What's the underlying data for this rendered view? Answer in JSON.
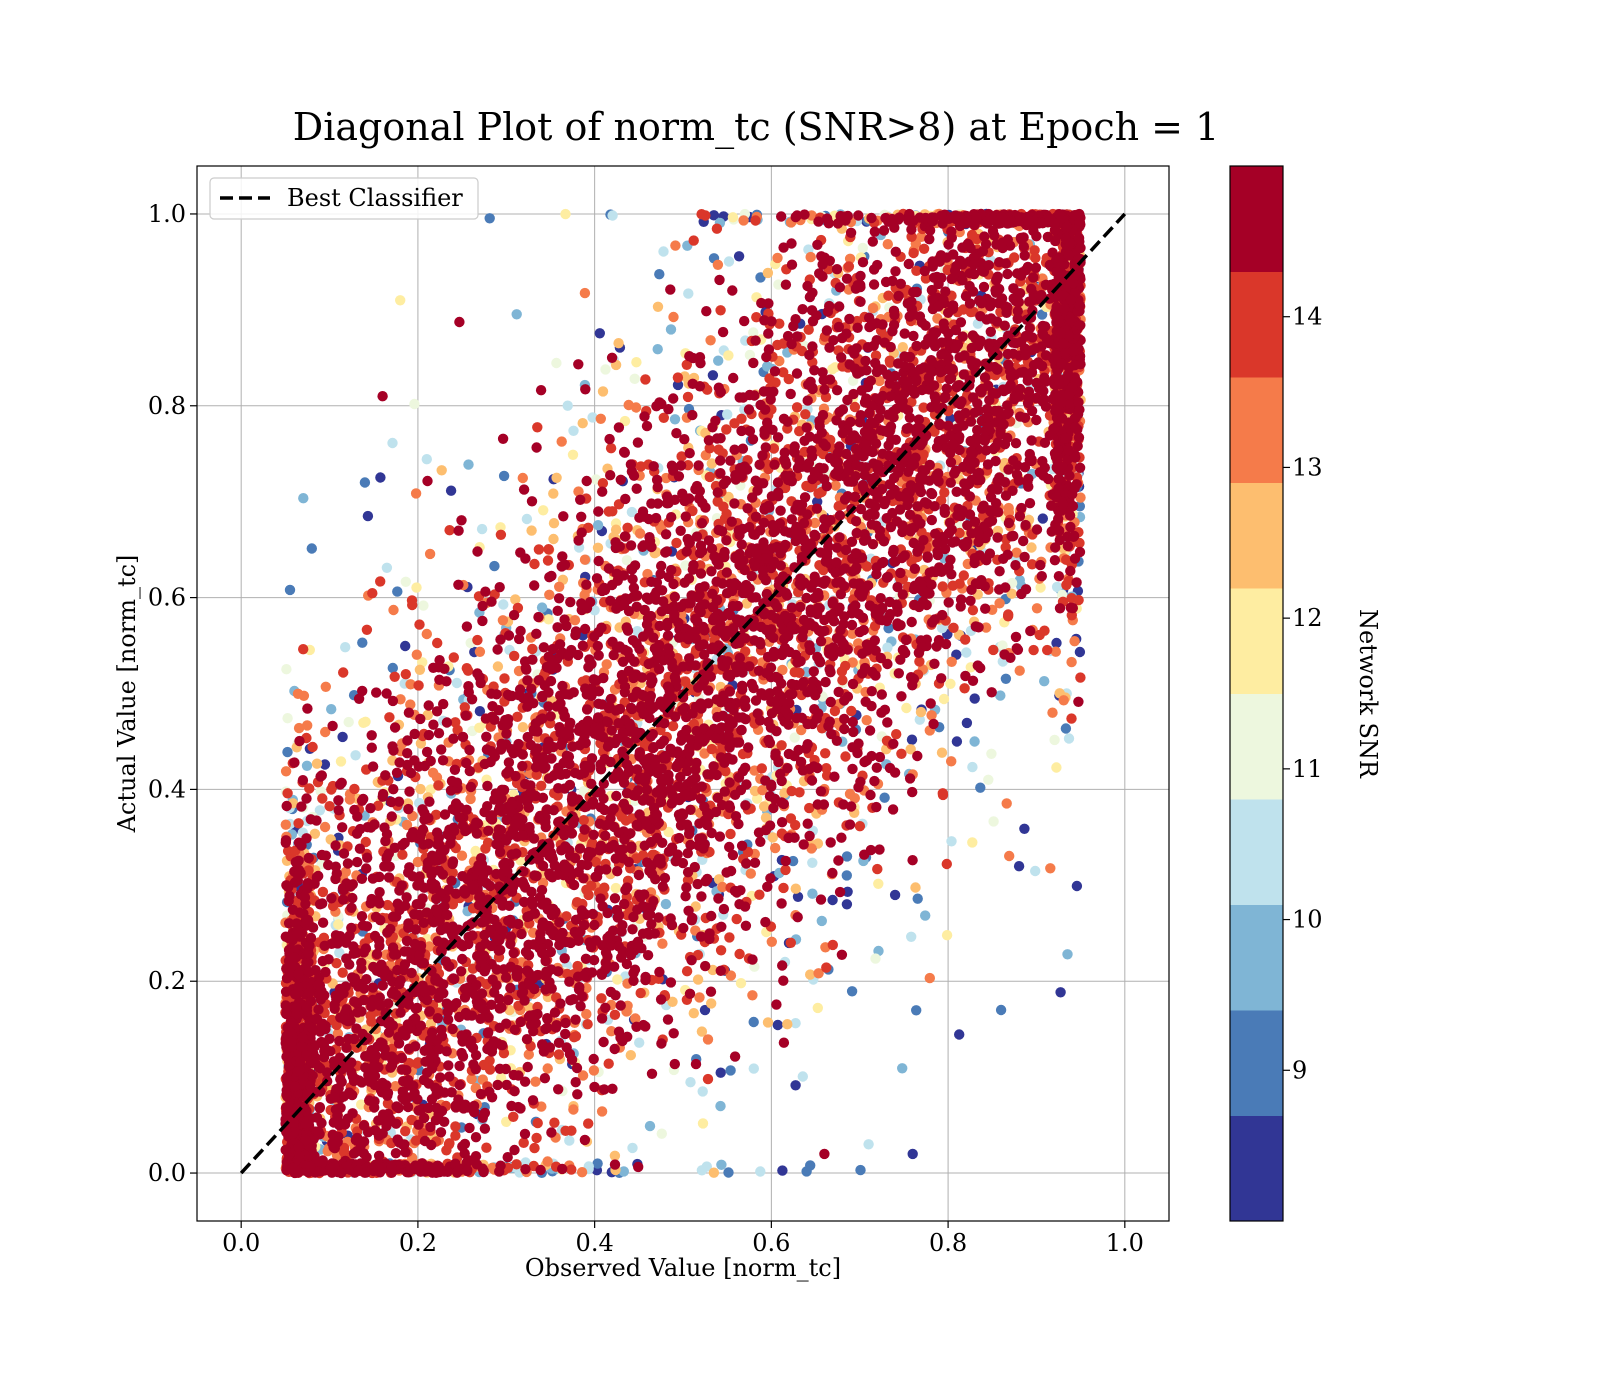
{
  "chart_data": {
    "type": "scatter",
    "title": "Diagonal Plot of norm_tc (SNR>8) at Epoch = 1",
    "xlabel": "Observed Value [norm_tc]",
    "ylabel": "Actual Value [norm_tc]",
    "xlim": [
      -0.05,
      1.05
    ],
    "ylim": [
      -0.05,
      1.05
    ],
    "xticks": [
      0.0,
      0.2,
      0.4,
      0.6,
      0.8,
      1.0
    ],
    "yticks": [
      0.0,
      0.2,
      0.4,
      0.6,
      0.8,
      1.0
    ],
    "xtick_labels": [
      "0.0",
      "0.2",
      "0.4",
      "0.6",
      "0.8",
      "1.0"
    ],
    "ytick_labels": [
      "0.0",
      "0.2",
      "0.4",
      "0.6",
      "0.8",
      "1.0"
    ],
    "grid": true,
    "legend": {
      "position": "upper-left",
      "entries": [
        {
          "label": "Best Classifier",
          "style": "dashed",
          "color": "#000000"
        }
      ]
    },
    "reference_line": {
      "name": "Best Classifier",
      "x": [
        0.0,
        1.0
      ],
      "y": [
        0.0,
        1.0
      ]
    },
    "colorbar": {
      "label": "Network SNR",
      "colormap": "RdYlBu_r (discrete)",
      "range": [
        8.0,
        15.0
      ],
      "ticks": [
        9,
        10,
        11,
        12,
        13,
        14
      ],
      "tick_labels": [
        "9",
        "10",
        "11",
        "12",
        "13",
        "14"
      ],
      "bins": [
        {
          "from": 8.0,
          "to": 8.7,
          "color": "#313695"
        },
        {
          "from": 8.7,
          "to": 9.4,
          "color": "#4a7bb7"
        },
        {
          "from": 9.4,
          "to": 10.1,
          "color": "#7fb5d5"
        },
        {
          "from": 10.1,
          "to": 10.8,
          "color": "#bfe2ed"
        },
        {
          "from": 10.8,
          "to": 11.5,
          "color": "#edf7de"
        },
        {
          "from": 11.5,
          "to": 12.2,
          "color": "#feeda1"
        },
        {
          "from": 12.2,
          "to": 12.9,
          "color": "#fdbe6f"
        },
        {
          "from": 12.9,
          "to": 13.6,
          "color": "#f57b4a"
        },
        {
          "from": 13.6,
          "to": 14.3,
          "color": "#da372a"
        },
        {
          "from": 14.3,
          "to": 15.0,
          "color": "#a50026"
        }
      ]
    },
    "distribution": {
      "description_values": "points concentrated along y = x with bulk spread about 0.13; low SNR points scatter widely",
      "x_range": [
        0.05,
        0.95
      ],
      "y_range": [
        0.0,
        1.0
      ],
      "high_snr_spread": 0.13,
      "low_snr_spread": 0.3
    },
    "sample_points": [
      {
        "x": 0.16,
        "y": 0.81,
        "snr": 14.8
      },
      {
        "x": 0.14,
        "y": 0.72,
        "snr": 9.2
      },
      {
        "x": 0.86,
        "y": 0.17,
        "snr": 9.1
      },
      {
        "x": 0.76,
        "y": 0.02,
        "snr": 8.2
      },
      {
        "x": 0.42,
        "y": 0.69,
        "snr": 13.9
      },
      {
        "x": 0.62,
        "y": 0.24,
        "snr": 8.5
      },
      {
        "x": 0.18,
        "y": 0.91,
        "snr": 11.8
      },
      {
        "x": 0.66,
        "y": 0.02,
        "snr": 14.5
      },
      {
        "x": 0.71,
        "y": 0.03,
        "snr": 10.5
      },
      {
        "x": 0.74,
        "y": 0.29,
        "snr": 8.4
      },
      {
        "x": 0.81,
        "y": 0.45,
        "snr": 8.6
      },
      {
        "x": 0.83,
        "y": 0.45,
        "snr": 9.7
      }
    ]
  }
}
